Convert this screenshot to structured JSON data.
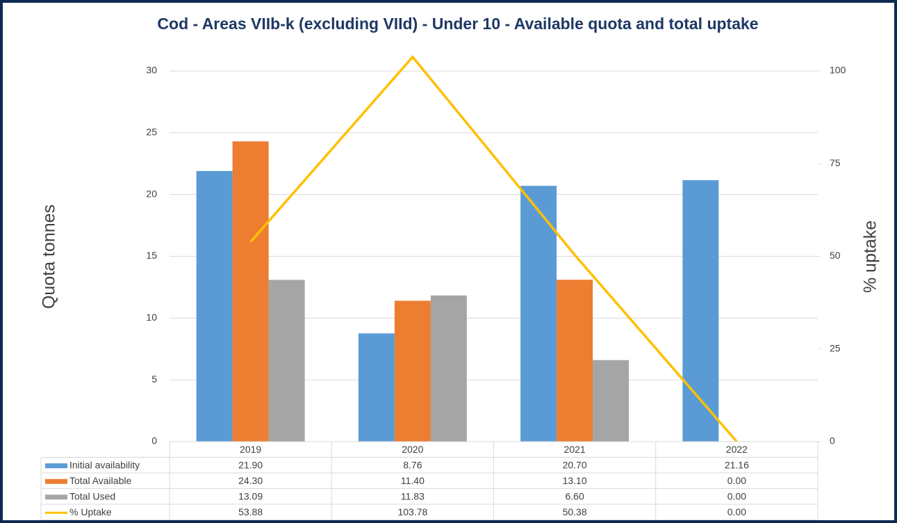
{
  "chart_data": {
    "type": "bar",
    "title": "Cod - Areas VIIb-k (excluding VIId) - Under 10 - Available quota and total uptake",
    "y_label": "Quota tonnes",
    "y2_label": "% uptake",
    "categories": [
      "2019",
      "2020",
      "2021",
      "2022"
    ],
    "ylim": [
      0,
      30
    ],
    "yticks": [
      0,
      5,
      10,
      15,
      20,
      25,
      30
    ],
    "y2lim": [
      0,
      100
    ],
    "y2ticks": [
      0,
      25,
      50,
      75,
      100
    ],
    "grid": true,
    "series": [
      {
        "name": "Initial availability",
        "type": "bar",
        "color": "#5b9bd5",
        "values": [
          21.9,
          8.76,
          20.7,
          21.16
        ],
        "value_labels": [
          "21.90",
          "8.76",
          "20.70",
          "21.16"
        ]
      },
      {
        "name": "Total Available",
        "type": "bar",
        "color": "#ed7d31",
        "values": [
          24.3,
          11.4,
          13.1,
          0
        ],
        "value_labels": [
          "24.30",
          "11.40",
          "13.10",
          "0.00"
        ]
      },
      {
        "name": "Total Used",
        "type": "bar",
        "color": "#a5a5a5",
        "values": [
          13.09,
          11.83,
          6.6,
          0
        ],
        "value_labels": [
          "13.09",
          "11.83",
          "6.60",
          "0.00"
        ]
      },
      {
        "name": "% Uptake",
        "type": "line",
        "axis": "y2",
        "color": "#ffc000",
        "values": [
          53.88,
          103.78,
          50.38,
          0
        ],
        "value_labels": [
          "53.88",
          "103.78",
          "50.38",
          "0.00"
        ]
      }
    ]
  }
}
